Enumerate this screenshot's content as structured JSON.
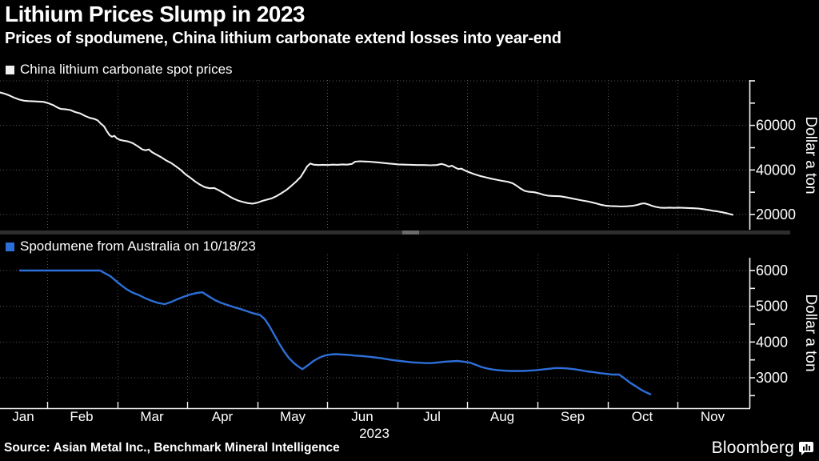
{
  "header": {
    "title": "Lithium Prices Slump in 2023",
    "subtitle": "Prices of spodumene, China lithium carbonate extend losses into year-end"
  },
  "colors": {
    "background": "#000000",
    "text": "#ffffff",
    "grid": "#575757",
    "axis": "#f2f2f2",
    "series_white": "#f0f0f0",
    "series_blue": "#2d6fd9",
    "separator": "#2e2e2e",
    "separator_thumb": "#6b6b6b"
  },
  "xaxis": {
    "months": [
      "Jan",
      "Feb",
      "Mar",
      "Apr",
      "May",
      "Jun",
      "Jul",
      "Aug",
      "Sep",
      "Oct",
      "Nov"
    ],
    "year": "2023",
    "note": "point x values are plot pixels; Jan 10 ≈ x0, month width ≈ 87.6px, plot right edge x=937"
  },
  "footer": {
    "source": "Source: Asian Metal Inc., Benchmark Mineral Intelligence",
    "brand": "Bloomberg"
  },
  "chart_data": [
    {
      "type": "line",
      "title": "China lithium carbonate spot prices",
      "ylabel": "Dollar a ton",
      "ylim": [
        13000,
        81500
      ],
      "grid": "dotted",
      "legend_position": "top-left",
      "color_key": "series_white",
      "gridlines_y": [
        80000,
        60000,
        40000,
        20000
      ],
      "ytick_values": [
        80000,
        70000,
        60000,
        50000,
        40000,
        30000,
        20000
      ],
      "ytick_labels": [
        {
          "v": 60000,
          "text": "60000"
        },
        {
          "v": 40000,
          "text": "40000"
        },
        {
          "v": 20000,
          "text": "20000"
        }
      ],
      "points": [
        [
          0,
          74800
        ],
        [
          6,
          74200
        ],
        [
          12,
          73400
        ],
        [
          18,
          72400
        ],
        [
          24,
          71600
        ],
        [
          30,
          71100
        ],
        [
          36,
          70900
        ],
        [
          42,
          70800
        ],
        [
          48,
          70700
        ],
        [
          54,
          70600
        ],
        [
          60,
          70000
        ],
        [
          66,
          69200
        ],
        [
          72,
          68000
        ],
        [
          76,
          67400
        ],
        [
          82,
          67200
        ],
        [
          88,
          66900
        ],
        [
          94,
          66000
        ],
        [
          100,
          65400
        ],
        [
          106,
          64300
        ],
        [
          112,
          63400
        ],
        [
          118,
          62900
        ],
        [
          122,
          62300
        ],
        [
          126,
          60800
        ],
        [
          130,
          59600
        ],
        [
          134,
          57200
        ],
        [
          137,
          55600
        ],
        [
          140,
          54900
        ],
        [
          143,
          55300
        ],
        [
          146,
          54200
        ],
        [
          150,
          53500
        ],
        [
          155,
          53100
        ],
        [
          160,
          52800
        ],
        [
          166,
          52000
        ],
        [
          172,
          50700
        ],
        [
          178,
          49200
        ],
        [
          182,
          48800
        ],
        [
          186,
          49200
        ],
        [
          190,
          48000
        ],
        [
          196,
          46800
        ],
        [
          202,
          45600
        ],
        [
          208,
          44200
        ],
        [
          214,
          43100
        ],
        [
          220,
          41600
        ],
        [
          226,
          40000
        ],
        [
          232,
          38000
        ],
        [
          238,
          36500
        ],
        [
          244,
          34800
        ],
        [
          250,
          33400
        ],
        [
          256,
          32300
        ],
        [
          262,
          31800
        ],
        [
          268,
          31900
        ],
        [
          274,
          30800
        ],
        [
          280,
          29600
        ],
        [
          286,
          28300
        ],
        [
          292,
          27100
        ],
        [
          298,
          26200
        ],
        [
          304,
          25600
        ],
        [
          310,
          25100
        ],
        [
          316,
          24900
        ],
        [
          322,
          25300
        ],
        [
          328,
          26100
        ],
        [
          334,
          26700
        ],
        [
          340,
          27300
        ],
        [
          346,
          28300
        ],
        [
          352,
          29600
        ],
        [
          358,
          31000
        ],
        [
          364,
          32800
        ],
        [
          370,
          34700
        ],
        [
          376,
          36900
        ],
        [
          380,
          39200
        ],
        [
          384,
          41600
        ],
        [
          388,
          42900
        ],
        [
          392,
          42400
        ],
        [
          398,
          42200
        ],
        [
          404,
          42300
        ],
        [
          410,
          42200
        ],
        [
          416,
          42400
        ],
        [
          422,
          42300
        ],
        [
          428,
          42500
        ],
        [
          434,
          42400
        ],
        [
          440,
          42700
        ],
        [
          444,
          43700
        ],
        [
          450,
          43900
        ],
        [
          456,
          43800
        ],
        [
          462,
          43700
        ],
        [
          468,
          43500
        ],
        [
          474,
          43300
        ],
        [
          480,
          43100
        ],
        [
          486,
          42900
        ],
        [
          492,
          42700
        ],
        [
          498,
          42500
        ],
        [
          506,
          42400
        ],
        [
          514,
          42300
        ],
        [
          522,
          42200
        ],
        [
          530,
          42200
        ],
        [
          538,
          42100
        ],
        [
          546,
          42200
        ],
        [
          552,
          42700
        ],
        [
          557,
          42200
        ],
        [
          561,
          41500
        ],
        [
          565,
          41900
        ],
        [
          569,
          41100
        ],
        [
          573,
          40400
        ],
        [
          577,
          40600
        ],
        [
          581,
          39800
        ],
        [
          587,
          38900
        ],
        [
          593,
          38100
        ],
        [
          600,
          37300
        ],
        [
          607,
          36700
        ],
        [
          614,
          36100
        ],
        [
          621,
          35600
        ],
        [
          628,
          35100
        ],
        [
          635,
          34700
        ],
        [
          641,
          34000
        ],
        [
          646,
          32900
        ],
        [
          651,
          31600
        ],
        [
          656,
          30600
        ],
        [
          661,
          30200
        ],
        [
          668,
          30000
        ],
        [
          674,
          29500
        ],
        [
          680,
          28800
        ],
        [
          686,
          28400
        ],
        [
          692,
          28300
        ],
        [
          700,
          28200
        ],
        [
          707,
          27800
        ],
        [
          714,
          27300
        ],
        [
          721,
          26800
        ],
        [
          728,
          26300
        ],
        [
          736,
          25800
        ],
        [
          744,
          25100
        ],
        [
          751,
          24400
        ],
        [
          757,
          24000
        ],
        [
          763,
          23800
        ],
        [
          770,
          23700
        ],
        [
          777,
          23600
        ],
        [
          784,
          23700
        ],
        [
          791,
          23900
        ],
        [
          797,
          24300
        ],
        [
          802,
          24900
        ],
        [
          806,
          25000
        ],
        [
          810,
          24600
        ],
        [
          815,
          23900
        ],
        [
          820,
          23400
        ],
        [
          825,
          23100
        ],
        [
          831,
          23000
        ],
        [
          837,
          23100
        ],
        [
          843,
          23000
        ],
        [
          849,
          23100
        ],
        [
          855,
          23000
        ],
        [
          861,
          22900
        ],
        [
          867,
          22800
        ],
        [
          873,
          22700
        ],
        [
          879,
          22400
        ],
        [
          885,
          22100
        ],
        [
          891,
          21700
        ],
        [
          897,
          21400
        ],
        [
          903,
          21000
        ],
        [
          908,
          20600
        ],
        [
          912,
          20200
        ],
        [
          916,
          19900
        ]
      ]
    },
    {
      "type": "line",
      "title": "Spodumene from Australia on 10/18/23",
      "ylabel": "Dollar a ton",
      "ylim": [
        2330,
        6500
      ],
      "grid": "dotted",
      "legend_position": "top-left",
      "color_key": "series_blue",
      "gridlines_y": [
        6000,
        5000,
        4000,
        3000
      ],
      "ytick_values": [
        6000,
        5500,
        5000,
        4500,
        4000,
        3500,
        3000,
        2500
      ],
      "ytick_labels": [
        {
          "v": 6000,
          "text": "6000"
        },
        {
          "v": 5000,
          "text": "5000"
        },
        {
          "v": 4000,
          "text": "4000"
        },
        {
          "v": 3000,
          "text": "3000"
        }
      ],
      "points": [
        [
          25,
          6000
        ],
        [
          60,
          6000
        ],
        [
          95,
          6000
        ],
        [
          125,
          6000
        ],
        [
          138,
          5840
        ],
        [
          148,
          5650
        ],
        [
          158,
          5480
        ],
        [
          166,
          5380
        ],
        [
          174,
          5310
        ],
        [
          182,
          5220
        ],
        [
          190,
          5150
        ],
        [
          198,
          5090
        ],
        [
          206,
          5060
        ],
        [
          214,
          5120
        ],
        [
          222,
          5200
        ],
        [
          230,
          5270
        ],
        [
          238,
          5330
        ],
        [
          246,
          5370
        ],
        [
          253,
          5390
        ],
        [
          261,
          5280
        ],
        [
          269,
          5170
        ],
        [
          277,
          5090
        ],
        [
          285,
          5030
        ],
        [
          293,
          4970
        ],
        [
          301,
          4920
        ],
        [
          309,
          4860
        ],
        [
          317,
          4800
        ],
        [
          325,
          4760
        ],
        [
          331,
          4640
        ],
        [
          337,
          4440
        ],
        [
          343,
          4200
        ],
        [
          349,
          3960
        ],
        [
          355,
          3740
        ],
        [
          361,
          3560
        ],
        [
          367,
          3420
        ],
        [
          372,
          3330
        ],
        [
          378,
          3240
        ],
        [
          385,
          3350
        ],
        [
          392,
          3470
        ],
        [
          399,
          3560
        ],
        [
          406,
          3620
        ],
        [
          413,
          3650
        ],
        [
          420,
          3660
        ],
        [
          428,
          3650
        ],
        [
          436,
          3640
        ],
        [
          444,
          3620
        ],
        [
          452,
          3610
        ],
        [
          460,
          3590
        ],
        [
          468,
          3570
        ],
        [
          476,
          3550
        ],
        [
          484,
          3520
        ],
        [
          492,
          3490
        ],
        [
          500,
          3470
        ],
        [
          508,
          3450
        ],
        [
          516,
          3430
        ],
        [
          524,
          3420
        ],
        [
          532,
          3410
        ],
        [
          540,
          3410
        ],
        [
          548,
          3430
        ],
        [
          556,
          3450
        ],
        [
          564,
          3460
        ],
        [
          572,
          3470
        ],
        [
          580,
          3450
        ],
        [
          588,
          3420
        ],
        [
          595,
          3360
        ],
        [
          602,
          3300
        ],
        [
          609,
          3260
        ],
        [
          616,
          3230
        ],
        [
          623,
          3210
        ],
        [
          630,
          3200
        ],
        [
          638,
          3190
        ],
        [
          646,
          3190
        ],
        [
          654,
          3190
        ],
        [
          662,
          3200
        ],
        [
          670,
          3210
        ],
        [
          678,
          3230
        ],
        [
          686,
          3250
        ],
        [
          694,
          3270
        ],
        [
          702,
          3270
        ],
        [
          710,
          3260
        ],
        [
          718,
          3240
        ],
        [
          726,
          3210
        ],
        [
          734,
          3180
        ],
        [
          742,
          3160
        ],
        [
          750,
          3130
        ],
        [
          758,
          3110
        ],
        [
          766,
          3090
        ],
        [
          774,
          3090
        ],
        [
          781,
          2980
        ],
        [
          788,
          2860
        ],
        [
          795,
          2760
        ],
        [
          802,
          2660
        ],
        [
          808,
          2590
        ],
        [
          813,
          2540
        ]
      ]
    }
  ]
}
